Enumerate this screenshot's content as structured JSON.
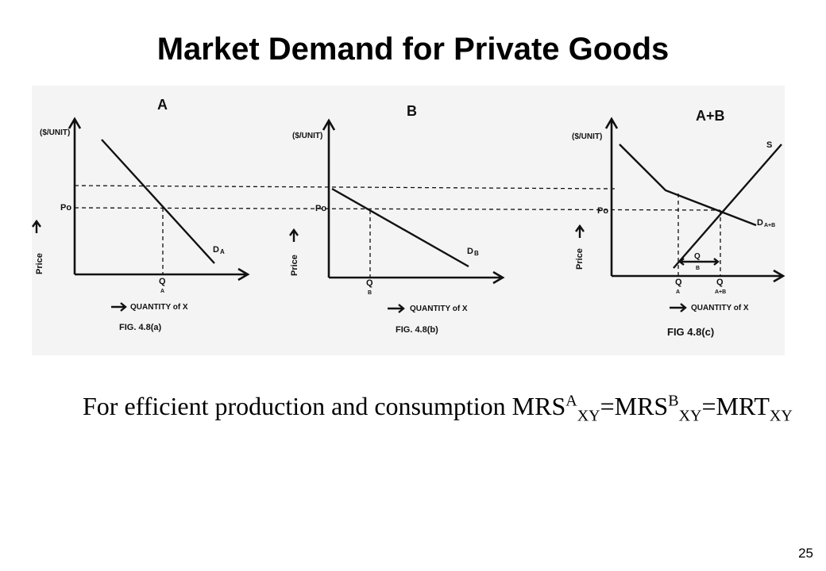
{
  "slide": {
    "title": "Market Demand for Private Goods",
    "page_number": "25"
  },
  "panels": [
    {
      "heading": "A",
      "y_unit": "($/UNIT)",
      "y_axis": "Price",
      "price_label": "Po",
      "quantity_label": "Q",
      "quantity_sub": "A",
      "x_axis": "QUANTITY of X",
      "demand_label": "D",
      "demand_sub": "A",
      "caption": "FIG. 4.8(a)"
    },
    {
      "heading": "B",
      "y_unit": "($/UNIT)",
      "y_axis": "Price",
      "price_label": "Po",
      "quantity_label": "Q",
      "quantity_sub": "B",
      "x_axis": "QUANTITY of X",
      "demand_label": "D",
      "demand_sub": "B",
      "caption": "FIG. 4.8(b)"
    },
    {
      "heading": "A+B",
      "y_unit": "($/UNIT)",
      "y_axis": "Price",
      "price_label": "Po",
      "quantity_label_a": "Q",
      "quantity_sub_a": "A",
      "quantity_label_ab": "Q",
      "quantity_sub_ab": "A+B",
      "gap_label": "Q",
      "gap_sub": "B",
      "supply_label": "S",
      "demand_label": "D",
      "demand_sub": "A+B",
      "x_axis": "QUANTITY of X",
      "caption": "FIG 4.8(c)"
    }
  ],
  "formula": {
    "lead": "For efficient production and consumption ",
    "t1": "MRS",
    "sup1": "A",
    "sub1": "XY",
    "eq1": "=",
    "t2": "MRS",
    "sup2": "B",
    "sub2": "XY",
    "eq2": "=",
    "t3": "MRT",
    "sub3": "XY"
  }
}
